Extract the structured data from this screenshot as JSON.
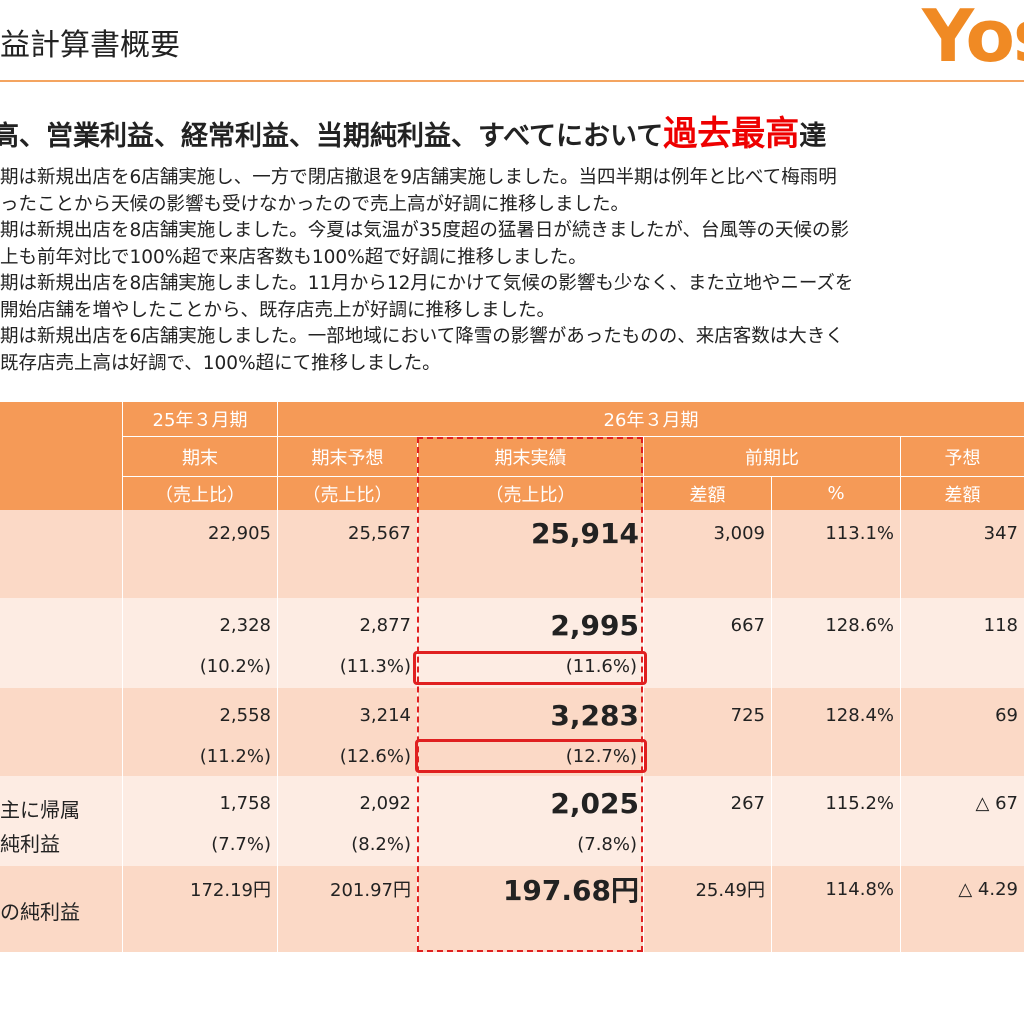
{
  "title": "益計算書概要",
  "logo": "Yos",
  "headline": {
    "text": "高、営業利益、経常利益、当期純利益、すべてにおいて",
    "highlight": "過去最高",
    "tail": "達"
  },
  "body_lines": [
    "期は新規出店を6店舗実施し、一方で閉店撤退を9店舗実施しました。当四半期は例年と比べて梅雨明",
    "ったことから天候の影響も受けなかったので売上高が好調に推移しました。",
    "期は新規出店を8店舗実施しました。今夏は気温が35度超の猛暑日が続きましたが、台風等の天候の影",
    "上も前年対比で100%超で来店客数も100%超で好調に推移しました。",
    "期は新規出店を8店舗実施しました。11月から12月にかけて気候の影響も少なく、また立地やニーズを",
    "開始店舗を増やしたことから、既存店売上が好調に推移しました。",
    "期は新規出店を6店舗実施しました。一部地域において降雪の影響があったものの、来店客数は大きく",
    "既存店売上高は好調で、100%超にて推移しました。"
  ],
  "unit_note": "（",
  "table": {
    "header": {
      "prev_period": "25年３月期",
      "cur_period": "26年３月期",
      "prev_end": "期末",
      "forecast": "期末予想",
      "actual": "期末実績",
      "yoy": "前期比",
      "vs_forecast": "予想",
      "ratio_1": "（売上比）",
      "ratio_2": "（売上比）",
      "ratio_3": "（売上比）",
      "yoy_diff": "差額",
      "yoy_pct": "%",
      "fc_diff": "差額"
    },
    "rows": [
      {
        "main": [
          "22,905",
          "25,567",
          "25,914",
          "3,009",
          "113.1%",
          "347"
        ]
      },
      {
        "main": [
          "2,328",
          "2,877",
          "2,995",
          "667",
          "128.6%",
          "118"
        ],
        "sub": [
          "(10.2%)",
          "(11.3%)",
          "(11.6%)"
        ]
      },
      {
        "main": [
          "2,558",
          "3,214",
          "3,283",
          "725",
          "128.4%",
          "69"
        ],
        "sub": [
          "(11.2%)",
          "(12.6%)",
          "(12.7%)"
        ]
      },
      {
        "label": [
          "主に帰属",
          "純利益"
        ],
        "main": [
          "1,758",
          "2,092",
          "2,025",
          "267",
          "115.2%",
          "△ 67"
        ],
        "sub": [
          "(7.7%)",
          "(8.2%)",
          "(7.8%)"
        ]
      },
      {
        "label": [
          "の純利益"
        ],
        "main": [
          "172.19円",
          "201.97円",
          "197.68円",
          "25.49円",
          "114.8%",
          "△ 4.29"
        ]
      }
    ]
  }
}
